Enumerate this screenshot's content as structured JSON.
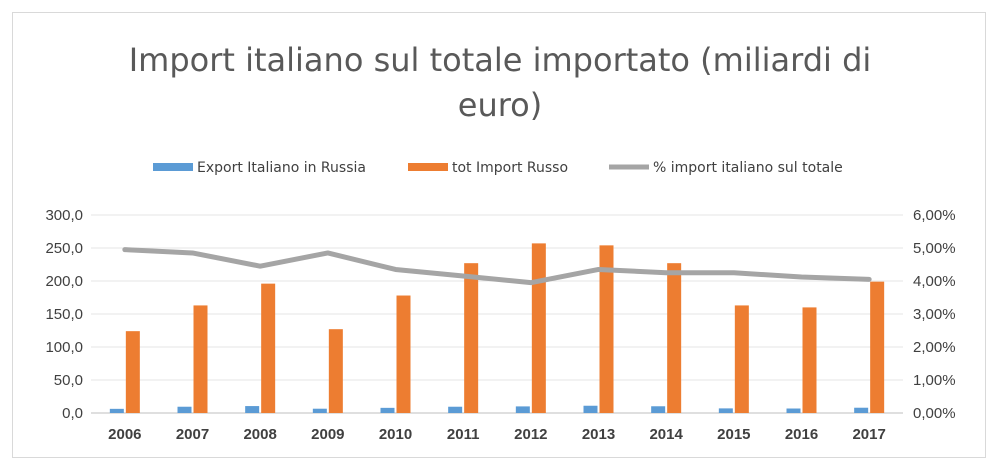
{
  "chart_data": {
    "type": "bar",
    "title_line1": "Import  italiano sul totale importato (miliardi di",
    "title_line2": "euro)",
    "categories": [
      "2006",
      "2007",
      "2008",
      "2009",
      "2010",
      "2011",
      "2012",
      "2013",
      "2014",
      "2015",
      "2016",
      "2017"
    ],
    "series": [
      {
        "name": "Export Italiano in Russia",
        "kind": "bar",
        "axis": "left",
        "color": "#5b9bd5",
        "values": [
          6.3,
          9.5,
          10.5,
          6.5,
          7.8,
          9.5,
          10.0,
          11.0,
          10.2,
          7.0,
          6.8,
          8.0
        ]
      },
      {
        "name": "tot Import Russo",
        "kind": "bar",
        "axis": "left",
        "color": "#ed7d31",
        "values": [
          124,
          163,
          196,
          127,
          178,
          227,
          257,
          254,
          227,
          163,
          160,
          199
        ]
      },
      {
        "name": "% import italiano sul totale",
        "kind": "line",
        "axis": "right",
        "color": "#a5a5a5",
        "values": [
          4.95,
          4.85,
          4.45,
          4.85,
          4.35,
          4.15,
          3.95,
          4.35,
          4.25,
          4.25,
          4.12,
          4.05
        ]
      }
    ],
    "y_left": {
      "min": 0,
      "max": 300,
      "ticks": [
        "0,0",
        "50,0",
        "100,0",
        "150,0",
        "200,0",
        "250,0",
        "300,0"
      ]
    },
    "y_right": {
      "min": 0,
      "max": 6,
      "ticks": [
        "0,00%",
        "1,00%",
        "2,00%",
        "3,00%",
        "4,00%",
        "5,00%",
        "6,00%"
      ]
    },
    "grid": true,
    "legend_position": "top"
  }
}
